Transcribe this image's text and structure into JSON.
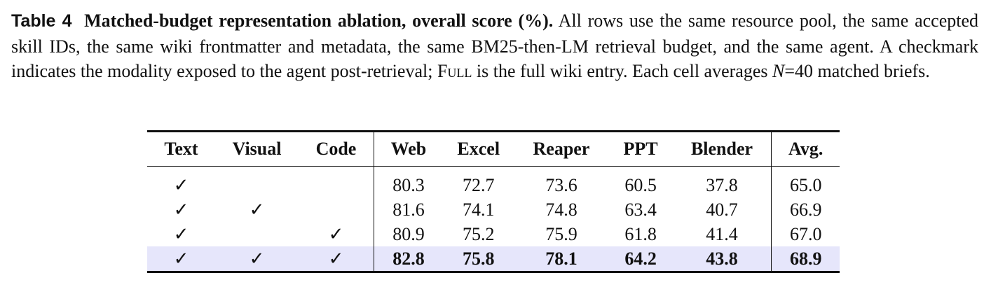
{
  "caption": {
    "label": "Table 4",
    "title": "Matched-budget representation ablation, overall score (%).",
    "text_part1": "All rows use the same resource pool, the same accepted skill IDs, the same wiki frontmatter and metadata, the same BM25-then-LM retrieval budget, and the same agent. A checkmark indicates the modality exposed to the agent post-retrieval;",
    "full_term": "Full",
    "text_part2": "is the full wiki entry. Each cell averages",
    "n_symbol": "N",
    "n_value": "=40 matched briefs."
  },
  "table": {
    "headers": [
      "Text",
      "Visual",
      "Code",
      "Web",
      "Excel",
      "Reaper",
      "PPT",
      "Blender",
      "Avg."
    ],
    "check_symbol": "✓",
    "rows": [
      {
        "text": "✓",
        "visual": "",
        "code": "",
        "web": "80.3",
        "excel": "72.7",
        "reaper": "73.6",
        "ppt": "60.5",
        "blender": "37.8",
        "avg": "65.0"
      },
      {
        "text": "✓",
        "visual": "✓",
        "code": "",
        "web": "81.6",
        "excel": "74.1",
        "reaper": "74.8",
        "ppt": "63.4",
        "blender": "40.7",
        "avg": "66.9"
      },
      {
        "text": "✓",
        "visual": "",
        "code": "✓",
        "web": "80.9",
        "excel": "75.2",
        "reaper": "75.9",
        "ppt": "61.8",
        "blender": "41.4",
        "avg": "67.0"
      },
      {
        "text": "✓",
        "visual": "✓",
        "code": "✓",
        "web": "82.8",
        "excel": "75.8",
        "reaper": "78.1",
        "ppt": "64.2",
        "blender": "43.8",
        "avg": "68.9"
      }
    ],
    "highlight_color": "#e6e6fb"
  }
}
